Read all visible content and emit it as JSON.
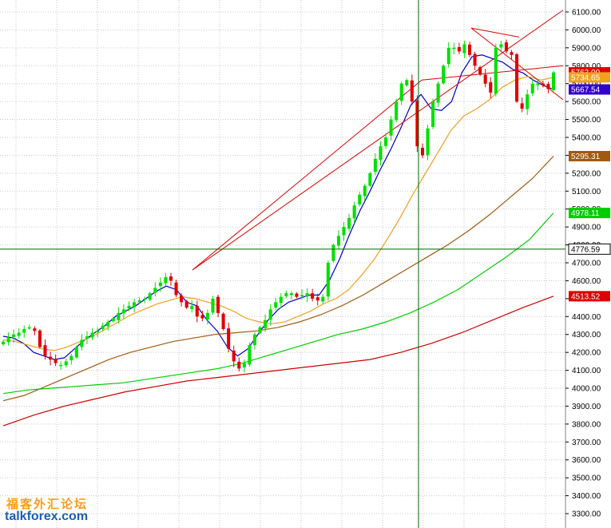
{
  "chart_data": {
    "type": "candlestick",
    "ylim": [
      3260,
      6140
    ],
    "y_ticks": [
      3300,
      3400,
      3500,
      3600,
      3700,
      3800,
      3900,
      4000,
      4100,
      4200,
      4300,
      4400,
      4500,
      4600,
      4700,
      4800,
      4900,
      5000,
      5100,
      5200,
      5300,
      5400,
      5500,
      5600,
      5700,
      5800,
      5900,
      6000,
      6100
    ],
    "y_tick_labels": [
      "3300.00",
      "3400.00",
      "3500.00",
      "3600.00",
      "3700.00",
      "3800.00",
      "3900.00",
      "4000.00",
      "4100.00",
      "4200.00",
      "4300.00",
      "4400.00",
      "4500.00",
      "4600.00",
      "4700.00",
      "4800.00",
      "4900.00",
      "5000.00",
      "5100.00",
      "5200.00",
      "5300.00",
      "5400.00",
      "5500.00",
      "5600.00",
      "5700.00",
      "5800.00",
      "5900.00",
      "6000.00",
      "6100.00"
    ],
    "grid": true,
    "colors": {
      "up": "#00e000",
      "down": "#e00000",
      "ma_short": "#0000cc",
      "ma_mid": "#f0a020",
      "ma_long": "#a05a10",
      "ma_green": "#00cc00",
      "ma_red": "#cc0000",
      "trendline": "#dd0000",
      "crosshair": "#006600"
    },
    "price_tags": [
      {
        "label": "5763.00",
        "value": 5763,
        "bg": "#e00000",
        "fg": "#ffffff"
      },
      {
        "label": "5734.65",
        "value": 5734.65,
        "bg": "#f0a020",
        "fg": "#ffffff"
      },
      {
        "label": "5667.54",
        "value": 5667.54,
        "bg": "#3300cc",
        "fg": "#ffffff"
      },
      {
        "label": "5295.31",
        "value": 5295.31,
        "bg": "#a05a10",
        "fg": "#ffffff"
      },
      {
        "label": "4978.11",
        "value": 4978.11,
        "bg": "#00cc00",
        "fg": "#ffffff"
      },
      {
        "label": "4776.59",
        "value": 4776.59,
        "bg": "#ffffff",
        "fg": "#000000"
      },
      {
        "label": "4513.52",
        "value": 4513.52,
        "bg": "#e00000",
        "fg": "#ffffff"
      }
    ],
    "crosshair": {
      "y": 4776.59
    },
    "closes": [
      4260,
      4280,
      4300,
      4310,
      4330,
      4340,
      4320,
      4230,
      4180,
      4160,
      4140,
      4130,
      4150,
      4180,
      4230,
      4270,
      4290,
      4310,
      4320,
      4350,
      4370,
      4390,
      4420,
      4440,
      4460,
      4480,
      4490,
      4500,
      4530,
      4560,
      4590,
      4620,
      4600,
      4520,
      4480,
      4450,
      4460,
      4400,
      4390,
      4420,
      4500,
      4420,
      4330,
      4220,
      4150,
      4110,
      4140,
      4240,
      4300,
      4340,
      4380,
      4440,
      4480,
      4510,
      4530,
      4530,
      4510,
      4520,
      4530,
      4500,
      4490,
      4510,
      4700,
      4800,
      4850,
      4900,
      4950,
      5020,
      5080,
      5130,
      5200,
      5280,
      5350,
      5400,
      5500,
      5600,
      5700,
      5720,
      5600,
      5350,
      5300,
      5450,
      5600,
      5700,
      5800,
      5900,
      5900,
      5880,
      5920,
      5860,
      5800,
      5750,
      5700,
      5650,
      5900,
      5920,
      5880,
      5860,
      5600,
      5560,
      5640,
      5700,
      5700,
      5690,
      5670,
      5763
    ],
    "ma": {
      "short": [
        4290,
        4280,
        4250,
        4200,
        4180,
        4160,
        4170,
        4220,
        4270,
        4310,
        4350,
        4400,
        4430,
        4460,
        4500,
        4540,
        4570,
        4550,
        4480,
        4460,
        4380,
        4320,
        4230,
        4180,
        4220,
        4300,
        4380,
        4440,
        4480,
        4500,
        4520,
        4520,
        4600,
        4720,
        4860,
        4990,
        5100,
        5220,
        5330,
        5450,
        5580,
        5640,
        5560,
        5550,
        5600,
        5760,
        5850,
        5860,
        5840,
        5820,
        5780,
        5760,
        5720,
        5690,
        5667.54
      ],
      "mid": [
        4270,
        4260,
        4240,
        4220,
        4210,
        4230,
        4260,
        4290,
        4330,
        4370,
        4410,
        4440,
        4470,
        4490,
        4510,
        4500,
        4480,
        4460,
        4430,
        4390,
        4370,
        4360,
        4370,
        4400,
        4430,
        4470,
        4500,
        4550,
        4630,
        4720,
        4830,
        4950,
        5080,
        5200,
        5320,
        5440,
        5520,
        5560,
        5610,
        5680,
        5720,
        5740,
        5720,
        5734.65
      ],
      "long": [
        3930,
        3960,
        4010,
        4060,
        4110,
        4160,
        4200,
        4230,
        4260,
        4280,
        4300,
        4310,
        4320,
        4340,
        4370,
        4410,
        4460,
        4520,
        4590,
        4660,
        4730,
        4800,
        4880,
        4970,
        5070,
        5170,
        5295.31
      ],
      "green": [
        3970,
        3990,
        4000,
        4010,
        4020,
        4030,
        4050,
        4070,
        4090,
        4110,
        4140,
        4180,
        4220,
        4260,
        4300,
        4330,
        4370,
        4420,
        4480,
        4550,
        4640,
        4730,
        4830,
        4978.11
      ],
      "red": [
        3790,
        3850,
        3900,
        3940,
        3980,
        4010,
        4040,
        4060,
        4080,
        4100,
        4120,
        4140,
        4160,
        4200,
        4250,
        4310,
        4380,
        4450,
        4513.52
      ]
    },
    "trendlines": [
      {
        "from": [
          241,
          4660
        ],
        "to": [
          705,
          6110
        ]
      },
      {
        "from": [
          241,
          4660
        ],
        "to": [
          528,
          5720
        ]
      },
      {
        "from": [
          528,
          5720
        ],
        "to": [
          705,
          5800
        ]
      },
      {
        "from": [
          590,
          6010
        ],
        "to": [
          705,
          5610
        ]
      },
      {
        "from": [
          590,
          6010
        ],
        "to": [
          650,
          5960
        ]
      }
    ],
    "candle_x_start": 4,
    "candle_x_end": 693
  },
  "watermark": {
    "cn": "福客外汇论坛",
    "en": "talkforex.com"
  }
}
